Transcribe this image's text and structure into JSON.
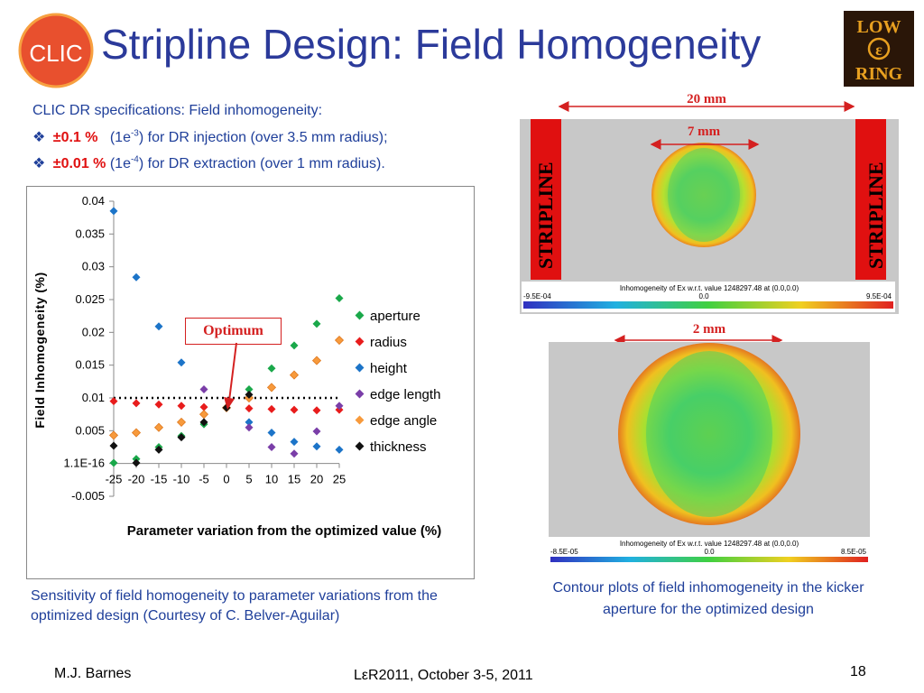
{
  "slide": {
    "title": "Stripline Design: Field Homogeneity",
    "logo_left_text": "CLIC",
    "logo_right_text": [
      "LOW",
      "ε",
      "RING"
    ],
    "spec_heading": "CLIC DR specifications: Field inhomogeneity:",
    "spec_items": [
      {
        "bullet": "❖",
        "value": "±0.1 %",
        "text_pre": "(1e",
        "sup": "-3",
        "text_post": ") for DR injection (over 3.5 mm radius);"
      },
      {
        "bullet": "❖",
        "value": "±0.01 %",
        "text_pre": "(1e",
        "sup": "-4",
        "text_post": ") for DR extraction (over 1 mm radius)."
      }
    ],
    "caption_left": "Sensitivity of field homogeneity to parameter variations from the optimized design (Courtesy of C. Belver-Aguilar)",
    "caption_right": "Contour plots of field inhomogeneity in the kicker aperture for the optimized design",
    "footer_left": "M.J. Barnes",
    "footer_center": "LεR2011, October 3-5, 2011",
    "footer_right": "18",
    "optimum_label": "Optimum"
  },
  "contour_top": {
    "dim_outer": "20 mm",
    "dim_inner": "7 mm",
    "stripline_label": "STRIPLINE",
    "scale_title": "Inhomogeneity of Ex  w.r.t. value 1248297.48 at (0.0,0.0)",
    "scale_min": "-9.5E-04",
    "scale_mid": "0.0",
    "scale_max": "9.5E-04"
  },
  "contour_bottom": {
    "dim": "2 mm",
    "scale_title": "Inhomogeneity of Ex  w.r.t. value 1248297.48 at (0.0,0.0)",
    "scale_min": "-8.5E-05",
    "scale_mid": "0.0",
    "scale_max": "8.5E-05"
  },
  "colors": {
    "title": "#2b3a9a",
    "text_blue": "#1f3f9a",
    "red": "#e01010"
  },
  "chart_data": {
    "type": "scatter",
    "title": "",
    "xlabel": "Parameter variation from the optimized value (%)",
    "ylabel": "Field Inhomogeneity (%)",
    "x": [
      -25,
      -20,
      -15,
      -10,
      -5,
      0,
      5,
      10,
      15,
      20,
      25
    ],
    "x_ticks": [
      "-25",
      "-20",
      "-15",
      "-10",
      "-5",
      "0",
      "5",
      "10",
      "15",
      "20",
      "25"
    ],
    "y_ticks": [
      "0.04",
      "0.035",
      "0.03",
      "0.025",
      "0.02",
      "0.015",
      "0.01",
      "0.005",
      "1.1E-16",
      "-0.005"
    ],
    "ylim": [
      -0.005,
      0.04
    ],
    "xlim": [
      -25,
      25
    ],
    "reference_line": 0.01,
    "legend_position": "right",
    "series": [
      {
        "name": "aperture",
        "color": "#1aa84a",
        "values": [
          0.0001,
          0.0007,
          0.0025,
          0.0042,
          0.006,
          0.0085,
          0.0113,
          0.0145,
          0.018,
          0.0213,
          0.0252
        ]
      },
      {
        "name": "radius",
        "color": "#e81c1c",
        "values": [
          0.0095,
          0.0092,
          0.009,
          0.0088,
          0.0086,
          0.0085,
          0.0084,
          0.0083,
          0.0082,
          0.0081,
          0.0082
        ]
      },
      {
        "name": "height",
        "color": "#1c74c8",
        "values": [
          0.0385,
          0.0284,
          0.0209,
          0.0154,
          null,
          0.0085,
          0.0063,
          0.0047,
          0.0033,
          0.0026,
          0.0021
        ]
      },
      {
        "name": "edge length",
        "color": "#7a3ea8",
        "values": [
          null,
          null,
          null,
          null,
          0.0113,
          0.0085,
          0.0055,
          0.0025,
          0.0015,
          0.0049,
          0.0088
        ]
      },
      {
        "name": "edge angle",
        "color": "#f79a3c",
        "values": [
          0.0043,
          0.0047,
          0.0055,
          0.0063,
          0.0075,
          0.0085,
          0.01,
          0.0116,
          0.0135,
          0.0157,
          0.0188
        ]
      },
      {
        "name": "thickness",
        "color": "#111111",
        "values": [
          0.0027,
          0.0001,
          0.0021,
          0.004,
          0.0063,
          0.0085,
          0.0105,
          null,
          null,
          null,
          null
        ]
      }
    ]
  }
}
